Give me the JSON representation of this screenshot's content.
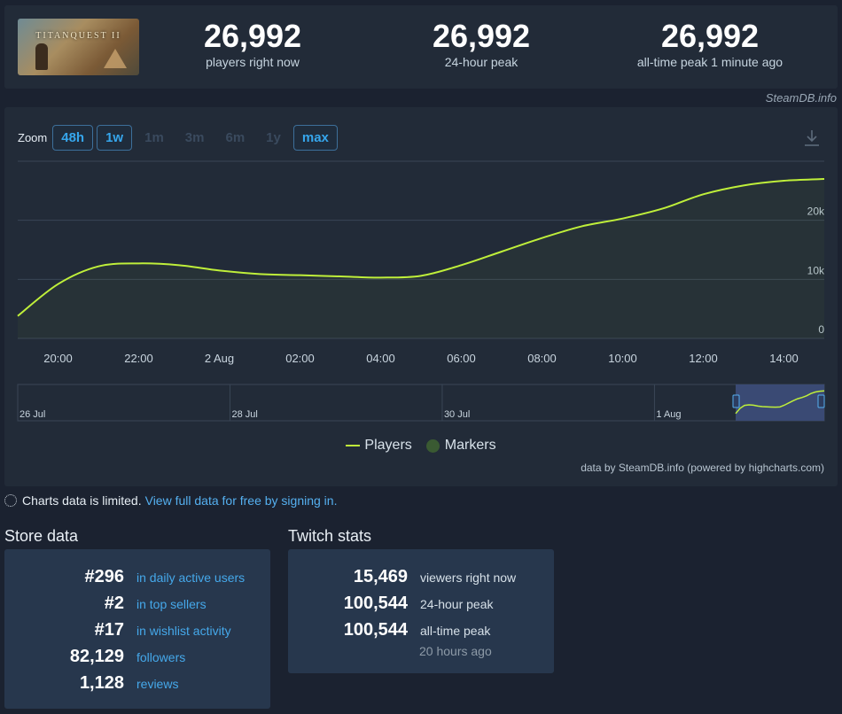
{
  "header": {
    "game_thumbnail_text": "TITANQUEST II",
    "stats": [
      {
        "value": "26,992",
        "label": "players right now"
      },
      {
        "value": "26,992",
        "label": "24-hour peak"
      },
      {
        "value": "26,992",
        "label": "all-time peak 1 minute ago"
      }
    ],
    "credit": "SteamDB.info"
  },
  "zoom": {
    "label": "Zoom",
    "options": [
      {
        "label": "48h",
        "active": true
      },
      {
        "label": "1w",
        "active": true
      },
      {
        "label": "1m",
        "active": false
      },
      {
        "label": "3m",
        "active": false
      },
      {
        "label": "6m",
        "active": false
      },
      {
        "label": "1y",
        "active": false
      },
      {
        "label": "max",
        "active": true
      }
    ]
  },
  "chart_data": {
    "type": "line",
    "series": [
      {
        "name": "Players",
        "color": "#bfef3a",
        "x": [
          "19:00",
          "20:00",
          "21:00",
          "22:00",
          "23:00",
          "00:00",
          "01:00",
          "02:00",
          "03:00",
          "04:00",
          "05:00",
          "06:00",
          "07:00",
          "08:00",
          "09:00",
          "10:00",
          "11:00",
          "12:00",
          "13:00",
          "14:00",
          "15:00"
        ],
        "values": [
          3800,
          9200,
          12200,
          12700,
          12400,
          11500,
          10900,
          10700,
          10500,
          10300,
          10600,
          12400,
          14700,
          17000,
          19000,
          20300,
          22000,
          24400,
          25900,
          26700,
          26992
        ]
      }
    ],
    "x_tick_labels": [
      "20:00",
      "22:00",
      "2 Aug",
      "02:00",
      "04:00",
      "06:00",
      "08:00",
      "10:00",
      "12:00",
      "14:00"
    ],
    "y_tick_labels": [
      "0",
      "10k",
      "20k"
    ],
    "ylim": [
      0,
      30000
    ],
    "grid": true,
    "navigator_labels": [
      "26 Jul",
      "28 Jul",
      "30 Jul",
      "1 Aug"
    ],
    "legend": [
      "Players",
      "Markers"
    ],
    "legend_position": "bottom-center",
    "marker_color": "#3a5a32"
  },
  "chart_credit": "data by SteamDB.info (powered by highcharts.com)",
  "notice": {
    "text": "Charts data is limited.",
    "link": "View full data for free by signing in."
  },
  "store": {
    "title": "Store data",
    "rows": [
      {
        "value": "#296",
        "label": "in daily active users"
      },
      {
        "value": "#2",
        "label": "in top sellers"
      },
      {
        "value": "#17",
        "label": "in wishlist activity"
      },
      {
        "value": "82,129",
        "label": "followers"
      },
      {
        "value": "1,128",
        "label": "reviews"
      }
    ]
  },
  "twitch": {
    "title": "Twitch stats",
    "rows": [
      {
        "value": "15,469",
        "label": "viewers right now"
      },
      {
        "value": "100,544",
        "label": "24-hour peak"
      },
      {
        "value": "100,544",
        "label": "all-time peak"
      }
    ],
    "ago": "20 hours ago"
  }
}
